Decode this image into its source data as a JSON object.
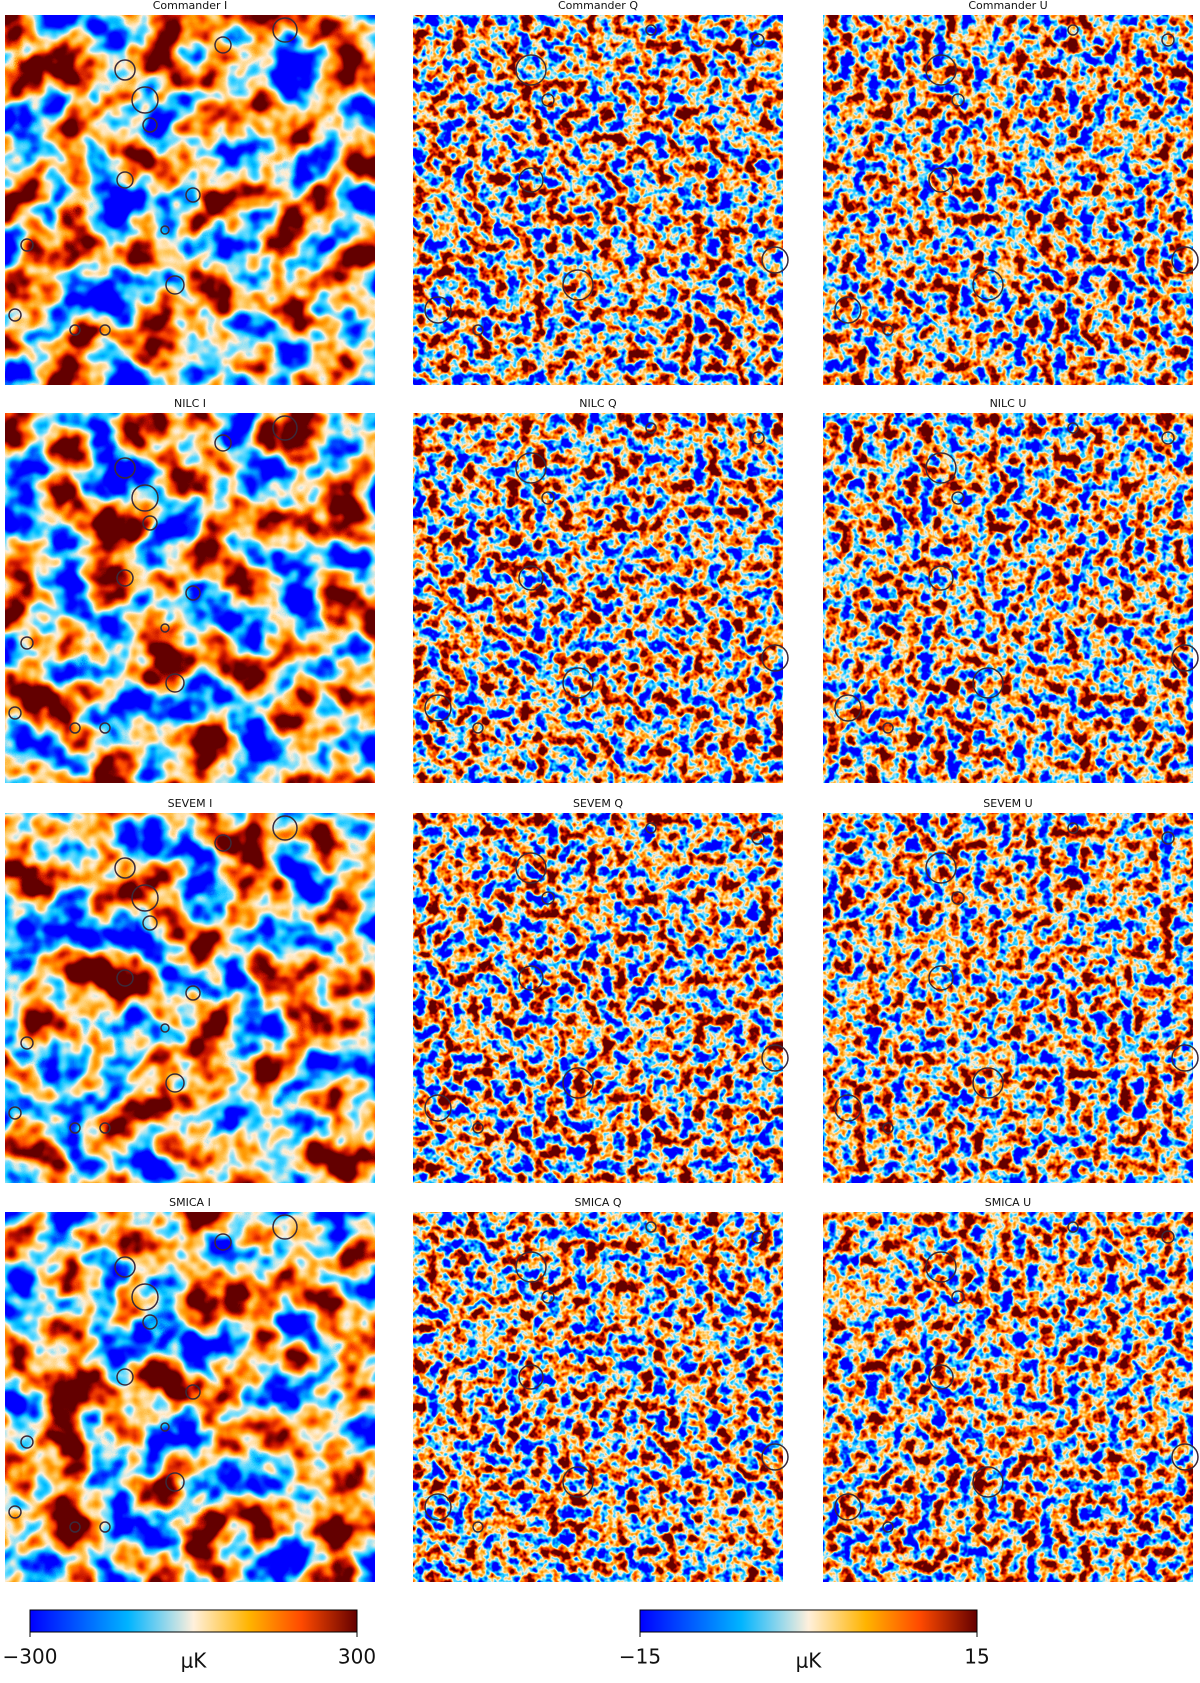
{
  "panels": [
    [
      "Commander I",
      "Commander Q",
      "Commander U"
    ],
    [
      "NILC I",
      "NILC Q",
      "NILC U"
    ],
    [
      "SEVEM I",
      "SEVEM Q",
      "SEVEM U"
    ],
    [
      "SMICA I",
      "SMICA Q",
      "SMICA U"
    ]
  ],
  "colorbars": [
    {
      "lim": [
        -300,
        300
      ],
      "ticks": [
        {
          "value": -300,
          "label": "−300"
        },
        300
      ],
      "label": "μK"
    },
    {
      "lim": [
        -15,
        15
      ],
      "ticks": [
        {
          "value": -15,
          "label": "−15"
        },
        15
      ],
      "label": "μK"
    }
  ]
}
